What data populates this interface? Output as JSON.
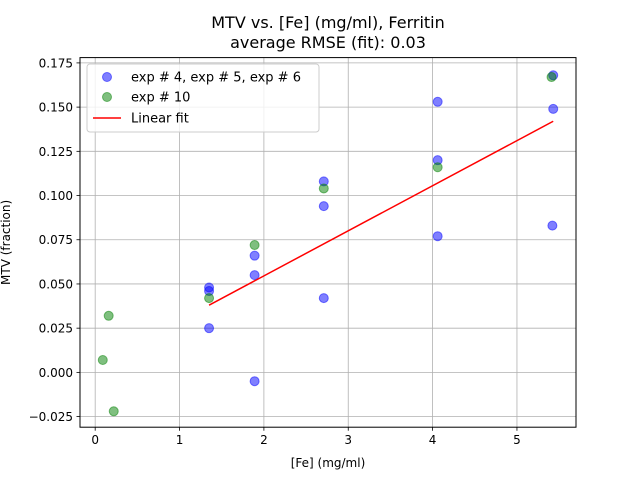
{
  "chart_data": {
    "type": "scatter",
    "title": "MTV vs. [Fe] (mg/ml), Ferritin",
    "subtitle": "average RMSE (fit): 0.03",
    "xlabel": "[Fe] (mg/ml)",
    "ylabel": "MTV (fraction)",
    "xlim": [
      -0.18,
      5.7
    ],
    "ylim": [
      -0.031,
      0.178
    ],
    "xticks": [
      0,
      1,
      2,
      3,
      4,
      5
    ],
    "xtick_labels": [
      "0",
      "1",
      "2",
      "3",
      "4",
      "5"
    ],
    "yticks": [
      -0.025,
      0.0,
      0.025,
      0.05,
      0.075,
      0.1,
      0.125,
      0.15,
      0.175
    ],
    "ytick_labels": [
      "−0.025",
      "0.000",
      "0.025",
      "0.050",
      "0.075",
      "0.100",
      "0.125",
      "0.150",
      "0.175"
    ],
    "grid": true,
    "legend_position": "top-left",
    "series": [
      {
        "name": "exp # 4, exp # 5, exp # 6",
        "kind": "scatter",
        "color": "#0000ff",
        "points": [
          [
            1.35,
            0.025
          ],
          [
            1.35,
            0.046
          ],
          [
            1.35,
            0.048
          ],
          [
            1.89,
            -0.005
          ],
          [
            1.89,
            0.055
          ],
          [
            1.89,
            0.066
          ],
          [
            2.71,
            0.042
          ],
          [
            2.71,
            0.094
          ],
          [
            2.71,
            0.108
          ],
          [
            4.06,
            0.077
          ],
          [
            4.06,
            0.12
          ],
          [
            4.06,
            0.153
          ],
          [
            5.42,
            0.083
          ],
          [
            5.43,
            0.149
          ],
          [
            5.43,
            0.168
          ]
        ]
      },
      {
        "name": "exp # 10",
        "kind": "scatter",
        "color": "#008000",
        "points": [
          [
            0.09,
            0.007
          ],
          [
            0.16,
            0.032
          ],
          [
            0.22,
            -0.022
          ],
          [
            1.35,
            0.042
          ],
          [
            1.89,
            0.072
          ],
          [
            2.71,
            0.104
          ],
          [
            4.06,
            0.116
          ],
          [
            5.41,
            0.167
          ]
        ]
      },
      {
        "name": "Linear fit",
        "kind": "line",
        "color": "#ff0000",
        "points": [
          [
            1.35,
            0.038
          ],
          [
            5.43,
            0.142
          ]
        ]
      }
    ]
  }
}
